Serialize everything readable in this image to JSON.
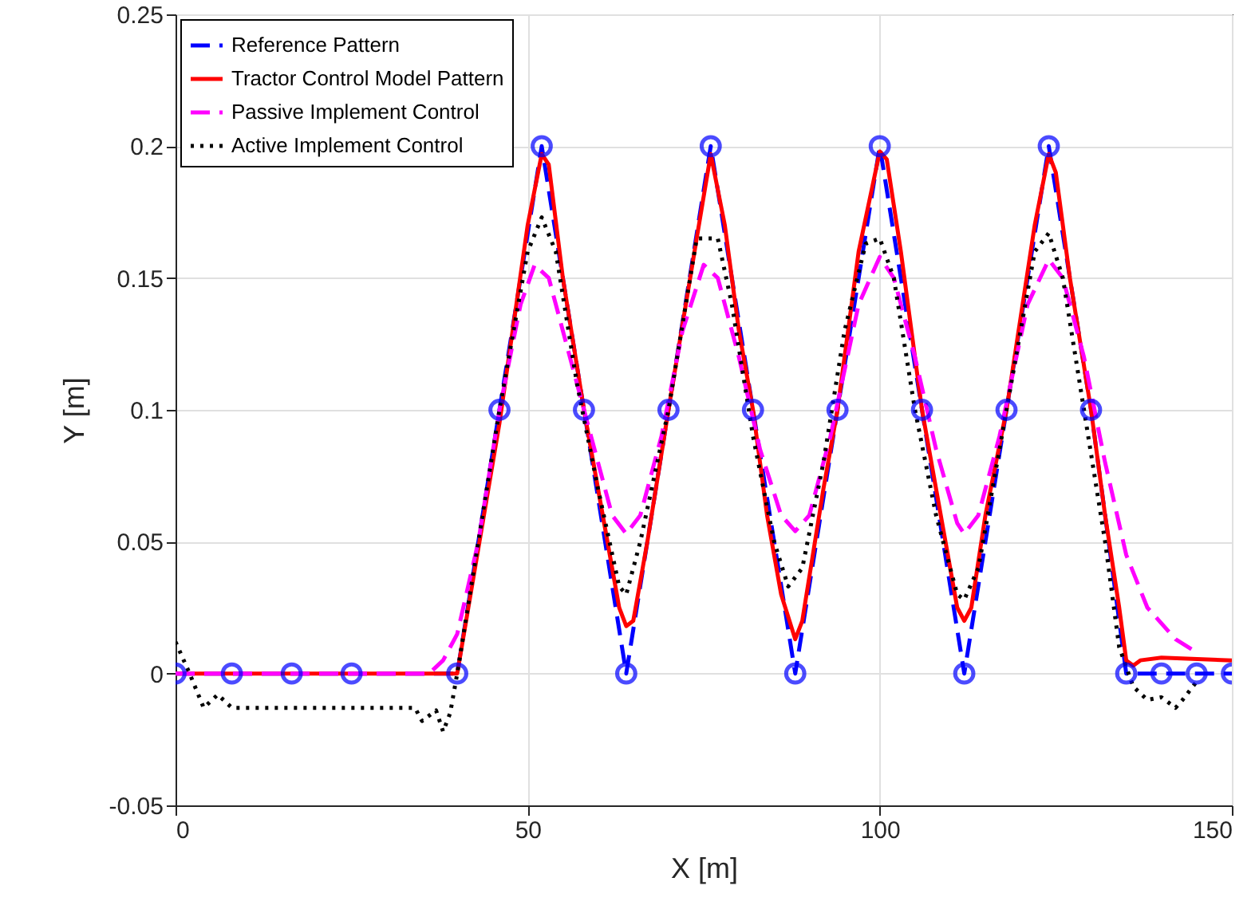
{
  "chart_data": {
    "type": "line",
    "xlabel": "X [m]",
    "ylabel": "Y [m]",
    "xlim": [
      0,
      150
    ],
    "xticks": [
      0,
      50,
      100,
      150
    ],
    "ylim": [
      -0.05,
      0.25
    ],
    "yticks": [
      -0.05,
      0,
      0.05,
      0.1,
      0.15,
      0.2,
      0.25
    ],
    "grid": true,
    "legend": "top left",
    "series": [
      {
        "name": "Reference Pattern",
        "color": "#0000ff",
        "line_style": "dashed",
        "marker": "circle",
        "x": [
          0,
          8,
          16.5,
          25,
          40,
          46,
          52,
          58,
          64,
          70,
          76,
          82,
          88,
          94,
          100,
          106,
          112,
          118,
          124,
          130,
          135,
          140,
          145,
          150
        ],
        "values": [
          0,
          0,
          0,
          0,
          0,
          0.1,
          0.2,
          0.1,
          0,
          0.1,
          0.2,
          0.1,
          0,
          0.1,
          0.2,
          0.1,
          0,
          0.1,
          0.2,
          0.1,
          0,
          0,
          0,
          0
        ]
      },
      {
        "name": "Tractor Control Model Pattern",
        "color": "#ff0000",
        "line_style": "solid",
        "x": [
          0,
          40,
          46,
          50,
          52,
          53,
          55,
          58,
          60,
          63,
          64,
          65,
          67,
          70,
          74,
          76,
          78,
          80,
          82,
          84,
          86,
          88,
          89,
          92,
          94,
          97,
          100,
          101,
          103,
          106,
          108,
          111,
          112,
          113,
          115,
          118,
          122,
          124,
          125,
          127,
          130,
          132,
          134,
          135,
          136,
          137,
          140,
          150
        ],
        "values": [
          0,
          0,
          0.095,
          0.17,
          0.197,
          0.193,
          0.15,
          0.1,
          0.07,
          0.025,
          0.018,
          0.02,
          0.05,
          0.1,
          0.165,
          0.197,
          0.17,
          0.13,
          0.1,
          0.06,
          0.03,
          0.013,
          0.02,
          0.07,
          0.1,
          0.16,
          0.198,
          0.195,
          0.16,
          0.1,
          0.07,
          0.025,
          0.02,
          0.025,
          0.06,
          0.1,
          0.17,
          0.197,
          0.19,
          0.15,
          0.1,
          0.06,
          0.025,
          0.005,
          0.003,
          0.005,
          0.006,
          0.005
        ]
      },
      {
        "name": "Passive Implement Control",
        "color": "#ff00ff",
        "line_style": "dashed",
        "x": [
          0,
          36,
          38,
          40,
          43,
          46,
          49,
          51,
          53,
          56,
          59,
          62,
          64,
          66,
          69,
          72,
          75,
          77,
          80,
          83,
          86,
          88,
          90,
          93,
          97,
          100,
          102,
          105,
          108,
          111,
          112,
          114,
          117,
          121,
          124,
          126,
          129,
          132,
          135,
          138,
          142,
          145
        ],
        "values": [
          0,
          0,
          0.005,
          0.015,
          0.05,
          0.1,
          0.14,
          0.155,
          0.15,
          0.12,
          0.09,
          0.06,
          0.053,
          0.06,
          0.09,
          0.13,
          0.155,
          0.15,
          0.12,
          0.085,
          0.06,
          0.054,
          0.06,
          0.09,
          0.14,
          0.158,
          0.15,
          0.12,
          0.085,
          0.057,
          0.053,
          0.06,
          0.09,
          0.14,
          0.157,
          0.15,
          0.12,
          0.08,
          0.045,
          0.025,
          0.013,
          0.008
        ]
      },
      {
        "name": "Active Implement Control",
        "color": "#000000",
        "line_style": "dotted",
        "x": [
          0,
          2,
          4,
          6,
          8,
          20,
          34,
          35,
          37,
          38,
          39,
          40,
          43,
          46,
          50,
          52,
          54,
          57,
          60,
          63,
          64,
          66,
          70,
          74,
          77,
          79,
          82,
          85,
          87,
          89,
          92,
          95,
          98,
          100,
          102,
          105,
          108,
          111,
          112,
          114,
          118,
          122,
          124,
          126,
          129,
          132,
          134,
          136,
          138,
          140,
          142,
          143,
          145
        ],
        "values": [
          0.012,
          0,
          -0.013,
          -0.008,
          -0.013,
          -0.013,
          -0.013,
          -0.018,
          -0.014,
          -0.022,
          -0.015,
          0,
          0.05,
          0.1,
          0.16,
          0.173,
          0.16,
          0.11,
          0.07,
          0.033,
          0.03,
          0.05,
          0.1,
          0.165,
          0.165,
          0.14,
          0.09,
          0.05,
          0.033,
          0.04,
          0.08,
          0.13,
          0.163,
          0.165,
          0.15,
          0.1,
          0.06,
          0.03,
          0.028,
          0.04,
          0.1,
          0.16,
          0.167,
          0.15,
          0.1,
          0.05,
          0.01,
          -0.005,
          -0.01,
          -0.009,
          -0.013,
          -0.01,
          -0.003
        ]
      }
    ]
  }
}
